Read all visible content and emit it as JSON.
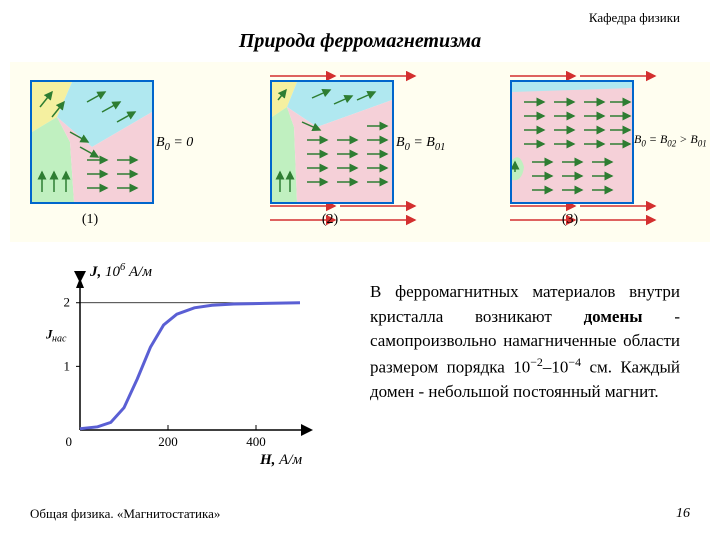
{
  "header": {
    "dept": "Кафедра физики"
  },
  "title": "Природа  ферромагнетизма",
  "figures": {
    "colors": {
      "yellow": "#f5f0a0",
      "cyan": "#b0e8f0",
      "green": "#c0f0c0",
      "pink": "#f5d0d8",
      "arrow_domain": "#2e7d32",
      "arrow_field": "#d32f2f",
      "border": "#0066cc"
    },
    "list": [
      {
        "num": "(1)",
        "b_html": "<span style='font-style:italic'>В</span><sub>0</sub> = 0"
      },
      {
        "num": "(2)",
        "b_html": "<span style='font-style:italic'>В</span><sub>0</sub> = <span style='font-style:italic'>В</span><sub>01</sub>"
      },
      {
        "num": "(3)",
        "b_html": "<span style='font-style:italic'>В</span><sub>0</sub> = <span style='font-style:italic'>В</span><sub>02</sub> &gt; <span style='font-style:italic'>В</span><sub>01</sub>"
      }
    ]
  },
  "chart": {
    "type": "line",
    "y_title_html": "<span style='font-style:italic;font-weight:bold'>J,</span> <span style='font-style:italic'>10<sup style='font-size:0.7em'>6</sup> А/м</span>",
    "x_title_html": "<span style='font-style:italic;font-weight:bold'>Н,</span> <span style='font-style:italic'>А/м</span>",
    "j_sat_label": "Jнас",
    "x_ticks": [
      "0",
      "200",
      "400"
    ],
    "y_ticks": [
      "1",
      "2"
    ],
    "xlim": [
      0,
      500
    ],
    "ylim": [
      0,
      2.2
    ],
    "line_color": "#5a5fd4",
    "line_width": 3,
    "axis_color": "#000000",
    "points": [
      {
        "x": 0,
        "y": 0.02
      },
      {
        "x": 40,
        "y": 0.05
      },
      {
        "x": 70,
        "y": 0.12
      },
      {
        "x": 100,
        "y": 0.35
      },
      {
        "x": 130,
        "y": 0.8
      },
      {
        "x": 160,
        "y": 1.3
      },
      {
        "x": 190,
        "y": 1.65
      },
      {
        "x": 220,
        "y": 1.82
      },
      {
        "x": 260,
        "y": 1.92
      },
      {
        "x": 300,
        "y": 1.96
      },
      {
        "x": 350,
        "y": 1.98
      },
      {
        "x": 420,
        "y": 1.99
      },
      {
        "x": 500,
        "y": 2.0
      }
    ]
  },
  "body_html": "В ферромагнитных материалов внутри кристалла возникают <b>домены</b> - самопроизвольно намагниченные области размером порядка 10<sup>−2</sup>–10<sup>−4</sup> см. Каждый домен - небольшой постоянный магнит.",
  "footer": {
    "left": "Общая физика.   «Магнитостатика»",
    "page": "16"
  }
}
